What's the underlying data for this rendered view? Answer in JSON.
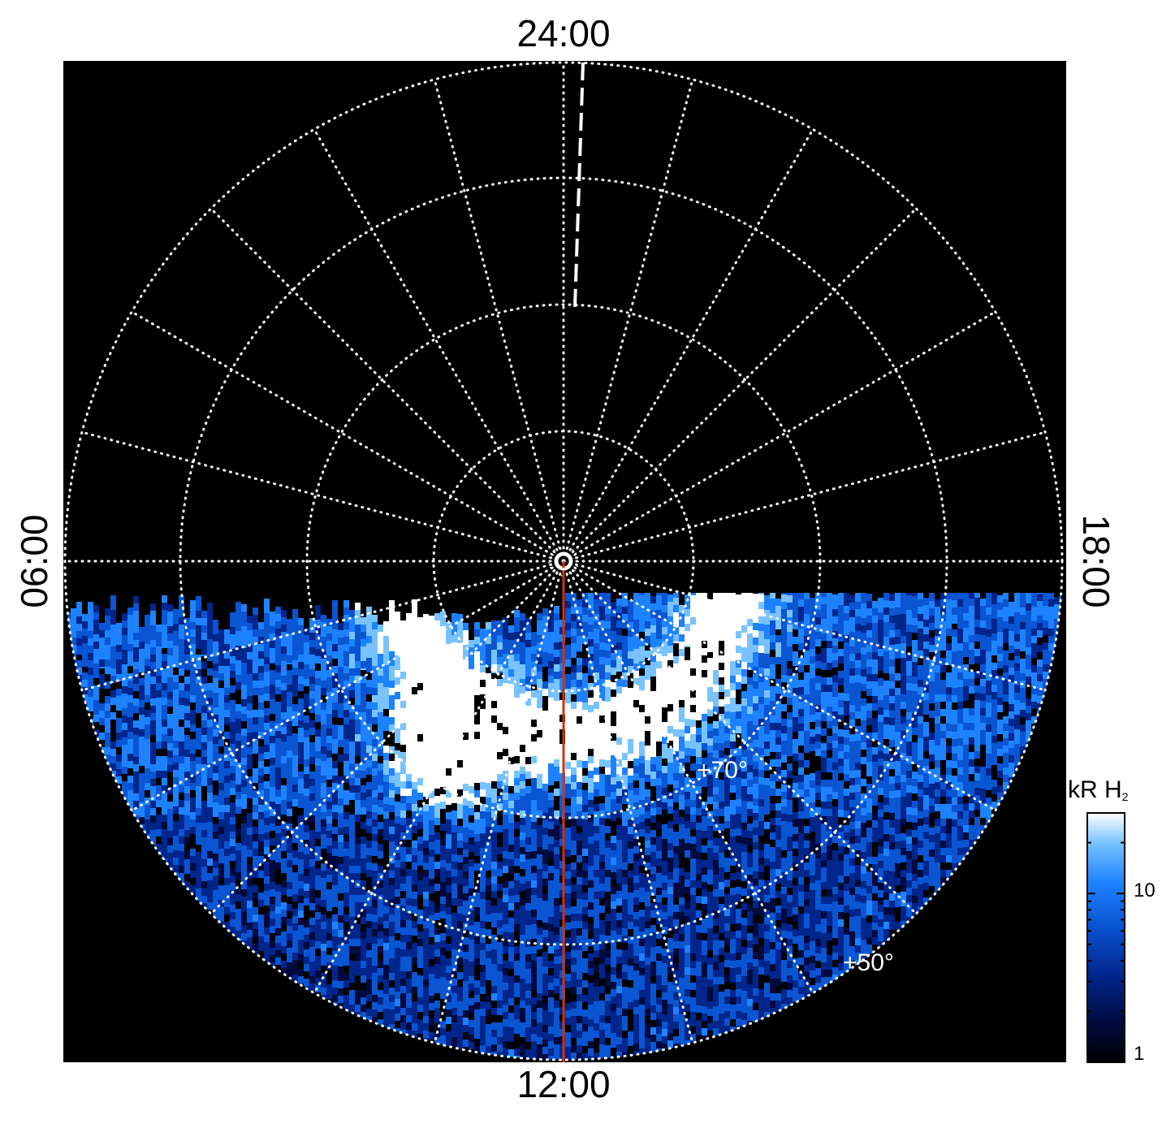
{
  "local_time_labels": {
    "top": "24:00",
    "bottom": "12:00",
    "left": "06:00",
    "right": "18:00"
  },
  "latitude_labels": [
    "+70°",
    "+50°"
  ],
  "colorbar": {
    "title_main": "kR H",
    "title_sub": "2",
    "scale": "log",
    "range": [
      1,
      30
    ],
    "tick_labels": [
      {
        "label": "1",
        "value": 1
      },
      {
        "label": "10",
        "value": 10
      }
    ],
    "colors": [
      "#000000",
      "#000a3c",
      "#00268c",
      "#0a55d2",
      "#1e82ff",
      "#78c3ff",
      "#ffffff"
    ]
  },
  "map": {
    "projection": "polar",
    "grid_line_color": "#ffffff",
    "grid_style": "dotted",
    "meridian_count": 24,
    "pole_marker": "circle",
    "midnight_marker": "dashed line",
    "meridian_line_color": "#cc3311",
    "background": "#000000"
  }
}
